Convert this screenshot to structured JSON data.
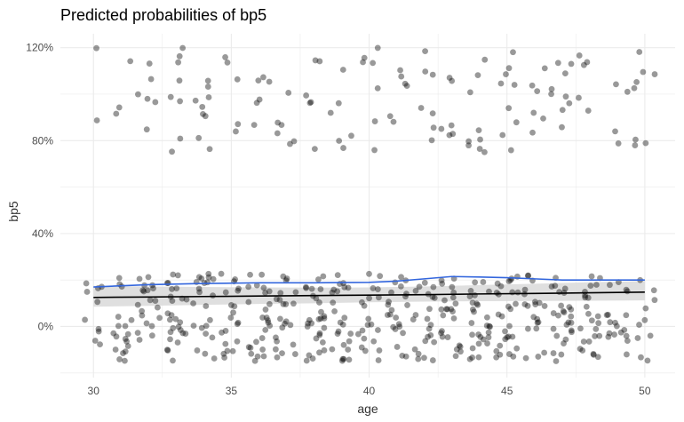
{
  "chart_data": {
    "type": "scatter",
    "title": "Predicted probabilities of bp5",
    "xlabel": "age",
    "ylabel": "bp5",
    "xlim": [
      28.8,
      51.1
    ],
    "ylim": [
      -0.22,
      1.26
    ],
    "x_ticks": [
      30,
      35,
      40,
      45,
      50
    ],
    "y_ticks": [
      {
        "value": 0.0,
        "label": "0%"
      },
      {
        "value": 0.4,
        "label": "40%"
      },
      {
        "value": 0.8,
        "label": "80%"
      },
      {
        "value": 1.2,
        "label": "120%"
      }
    ],
    "grid": true,
    "colors": {
      "points": "#000000",
      "model_line": "#000000",
      "confidence_band": "#d9d9d9",
      "smooth_line": "#3366dd",
      "grid": "#ebebeb"
    },
    "points_alpha": 0.4,
    "model_prediction": {
      "x": [
        30,
        32,
        34,
        36,
        38,
        40,
        42,
        44,
        46,
        48,
        50
      ],
      "y": [
        0.125,
        0.127,
        0.129,
        0.131,
        0.133,
        0.135,
        0.137,
        0.14,
        0.142,
        0.145,
        0.148
      ],
      "ci_low": [
        0.085,
        0.089,
        0.093,
        0.097,
        0.1,
        0.104,
        0.107,
        0.109,
        0.11,
        0.111,
        0.112
      ],
      "ci_high": [
        0.175,
        0.172,
        0.17,
        0.168,
        0.167,
        0.168,
        0.172,
        0.178,
        0.184,
        0.19,
        0.196
      ]
    },
    "smooth_line": {
      "x": [
        30,
        32,
        34,
        36,
        38,
        40,
        41,
        42,
        43,
        44,
        45,
        46,
        47,
        48,
        49,
        50
      ],
      "y": [
        0.17,
        0.18,
        0.185,
        0.188,
        0.188,
        0.19,
        0.195,
        0.205,
        0.215,
        0.213,
        0.21,
        0.205,
        0.2,
        0.2,
        0.2,
        0.2
      ]
    },
    "raw_points": {
      "description_levels": [
        "outcome 1 (jittered ~0.75–1.20)",
        "outcome 0 (jittered ~-0.15–0.23)"
      ],
      "ages": [
        30,
        31,
        32,
        33,
        34,
        35,
        36,
        37,
        38,
        39,
        40,
        41,
        42,
        43,
        44,
        45,
        46,
        47,
        48,
        49,
        50
      ],
      "count_high": [
        2,
        3,
        6,
        8,
        9,
        5,
        6,
        6,
        6,
        6,
        7,
        6,
        7,
        6,
        9,
        9,
        6,
        9,
        5,
        4,
        8
      ],
      "count_low": [
        10,
        18,
        20,
        26,
        22,
        20,
        25,
        22,
        28,
        24,
        20,
        22,
        22,
        24,
        28,
        28,
        20,
        26,
        24,
        18,
        10
      ]
    }
  }
}
